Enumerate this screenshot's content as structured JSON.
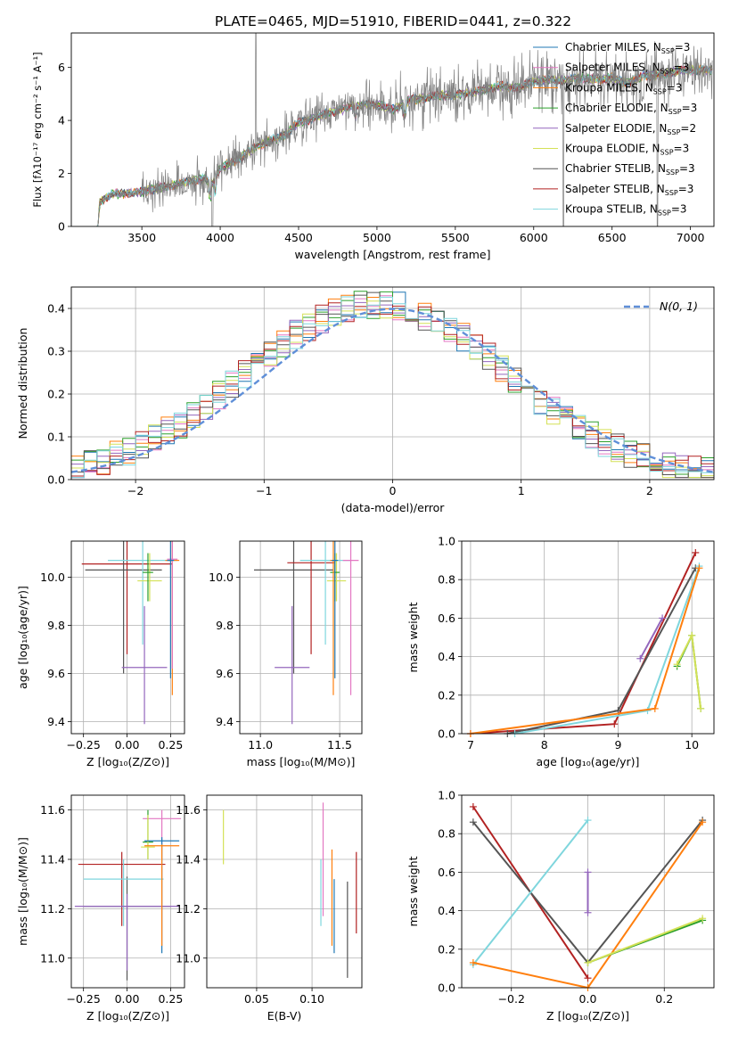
{
  "title": "PLATE=0465, MJD=51910, FIBERID=0441, z=0.322",
  "colors": {
    "chabrier_miles": "#1f77b4",
    "salpeter_miles": "#e377c2",
    "kroupa_miles": "#ff7f0e",
    "chabrier_elodie": "#2ca02c",
    "salpeter_elodie": "#9467bd",
    "kroupa_elodie": "#d4e157",
    "chabrier_stelib": "#555555",
    "salpeter_stelib": "#b22222",
    "kroupa_stelib": "#7fd6dd",
    "data": "#808080",
    "gaussian": "#5f8fd8",
    "grid": "#b0b0b0"
  },
  "chart_data": [
    {
      "id": "spectrum",
      "type": "line",
      "xlabel": "wavelength [Angstrom, rest frame]",
      "ylabel": "Flux [fλ10⁻¹⁷ erg cm⁻² s⁻¹ A⁻¹]",
      "xlim": [
        3050,
        7150
      ],
      "ylim": [
        0,
        7.3
      ],
      "xticks": [
        "3500",
        "4000",
        "4500",
        "5000",
        "5500",
        "6000",
        "6500",
        "7000"
      ],
      "yticks": [
        "0",
        "2",
        "4",
        "6"
      ],
      "grid": false,
      "legend": [
        "Chabrier MILES, N_SSP=3",
        "Salpeter MILES, N_SSP=3",
        "Kroupa MILES, N_SSP=3",
        "Chabrier ELODIE, N_SSP=3",
        "Salpeter ELODIE, N_SSP=2",
        "Kroupa ELODIE, N_SSP=3",
        "Chabrier STELIB, N_SSP=3",
        "Salpeter STELIB, N_SSP=3",
        "Kroupa STELIB, N_SSP=3"
      ],
      "legend_placement": "upper right",
      "continuum": {
        "x": [
          3220,
          3230,
          3300,
          3400,
          3500,
          3600,
          3700,
          3800,
          3900,
          3950,
          4000,
          4100,
          4200,
          4300,
          4400,
          4500,
          4600,
          4700,
          4800,
          4900,
          5000,
          5100,
          5200,
          5300,
          5400,
          5500,
          5600,
          5700,
          5800,
          5900,
          6000,
          6100,
          6200,
          6300,
          6400,
          6500,
          6600,
          6700,
          6800,
          6900,
          7000,
          7100
        ],
        "y": [
          0,
          0.9,
          1.2,
          1.25,
          1.3,
          1.45,
          1.55,
          1.7,
          1.8,
          1.6,
          2.2,
          2.5,
          2.9,
          3.2,
          3.4,
          3.9,
          4.1,
          4.3,
          4.45,
          4.6,
          4.6,
          4.4,
          4.75,
          4.85,
          4.95,
          4.95,
          5.05,
          5.2,
          5.3,
          5.2,
          5.45,
          5.55,
          5.5,
          5.6,
          5.55,
          5.6,
          5.4,
          5.7,
          5.7,
          5.85,
          5.9,
          5.9
        ]
      }
    },
    {
      "id": "residuals",
      "type": "line",
      "xlabel": "(data-model)/error",
      "ylabel": "Normed distribution",
      "xlim": [
        -2.5,
        2.5
      ],
      "ylim": [
        0,
        0.45
      ],
      "xticks": [
        "−2",
        "−1",
        "0",
        "1",
        "2"
      ],
      "yticks": [
        "0.0",
        "0.1",
        "0.2",
        "0.3",
        "0.4"
      ],
      "grid": true,
      "legend": [
        "N(0, 1)"
      ],
      "legend_placement": "upper right",
      "gaussian": {
        "mu": 0,
        "sigma": 1
      },
      "hist_bin_width": 0.1
    },
    {
      "id": "age_vs_Z",
      "type": "scatter",
      "xlabel": "Z [log₁₀(Z/Z⊙)]",
      "ylabel": "age  [log₁₀(age/yr)]",
      "xlim": [
        -0.32,
        0.33
      ],
      "ylim": [
        9.35,
        10.15
      ],
      "xticks": [
        "−0.25",
        "0.00",
        "0.25"
      ],
      "yticks": [
        "9.4",
        "9.6",
        "9.8",
        "10.0"
      ],
      "grid": true,
      "errorbars": [
        {
          "series": "salpeter_stelib",
          "x": 0.0,
          "xerr": 0.26,
          "y": 10.055,
          "ylo": 9.68,
          "yhi": 10.2
        },
        {
          "series": "chabrier_stelib",
          "x": -0.02,
          "xerr": 0.22,
          "y": 10.03,
          "ylo": 9.6,
          "yhi": 10.2
        },
        {
          "series": "salpeter_elodie",
          "x": 0.1,
          "xerr": 0.13,
          "y": 9.625,
          "ylo": 9.39,
          "yhi": 9.88
        },
        {
          "series": "kroupa_stelib",
          "x": 0.09,
          "xerr": 0.2,
          "y": 10.07,
          "ylo": 9.72,
          "yhi": 10.2
        },
        {
          "series": "kroupa_elodie",
          "x": 0.13,
          "xerr": 0.07,
          "y": 9.985,
          "ylo": 9.9,
          "yhi": 10.1
        },
        {
          "series": "chabrier_elodie",
          "x": 0.12,
          "xerr": 0.03,
          "y": 10.02,
          "ylo": 9.9,
          "yhi": 10.1
        },
        {
          "series": "kroupa_miles",
          "x": 0.26,
          "xerr": 0.04,
          "y": 10.07,
          "ylo": 9.51,
          "yhi": 10.2
        },
        {
          "series": "salpeter_miles",
          "x": 0.26,
          "xerr": 0.03,
          "y": 10.075,
          "ylo": 9.62,
          "yhi": 10.2
        },
        {
          "series": "chabrier_miles",
          "x": 0.25,
          "xerr": 0.02,
          "y": 10.07,
          "ylo": 9.58,
          "yhi": 10.2
        }
      ]
    },
    {
      "id": "age_vs_mass",
      "type": "scatter",
      "xlabel": "mass [log₁₀(M/M⊙)]",
      "ylabel": "",
      "xlim": [
        10.87,
        11.64
      ],
      "ylim": [
        9.35,
        10.15
      ],
      "xticks": [
        "11.0",
        "11.5"
      ],
      "yticks": [
        "9.4",
        "9.6",
        "9.8",
        "10.0"
      ],
      "grid": true,
      "errorbars": [
        {
          "series": "chabrier_stelib",
          "x": 11.21,
          "xerr": 0.25,
          "y": 10.03,
          "ylo": 9.6,
          "yhi": 10.2
        },
        {
          "series": "salpeter_stelib",
          "x": 11.32,
          "xerr": 0.15,
          "y": 10.06,
          "ylo": 9.68,
          "yhi": 10.2
        },
        {
          "series": "salpeter_elodie",
          "x": 11.2,
          "xerr": 0.11,
          "y": 9.625,
          "ylo": 9.39,
          "yhi": 9.88
        },
        {
          "series": "kroupa_stelib",
          "x": 11.41,
          "xerr": 0.16,
          "y": 10.07,
          "ylo": 9.72,
          "yhi": 10.2
        },
        {
          "series": "kroupa_elodie",
          "x": 11.48,
          "xerr": 0.06,
          "y": 9.985,
          "ylo": 9.9,
          "yhi": 10.1
        },
        {
          "series": "chabrier_elodie",
          "x": 11.47,
          "xerr": 0.03,
          "y": 10.02,
          "ylo": 9.9,
          "yhi": 10.1
        },
        {
          "series": "salpeter_miles",
          "x": 11.57,
          "xerr": 0.05,
          "y": 10.07,
          "ylo": 9.51,
          "yhi": 10.2
        },
        {
          "series": "kroupa_miles",
          "x": 11.46,
          "xerr": 0.02,
          "y": 10.07,
          "ylo": 9.51,
          "yhi": 10.2
        },
        {
          "series": "chabrier_miles",
          "x": 11.47,
          "xerr": 0.02,
          "y": 10.07,
          "ylo": 9.58,
          "yhi": 10.2
        }
      ]
    },
    {
      "id": "mass_weight_vs_age",
      "type": "line",
      "xlabel": "age  [log₁₀(age/yr)]",
      "ylabel": "mass weight",
      "xlim": [
        6.88,
        10.3
      ],
      "ylim": [
        0,
        1
      ],
      "xticks": [
        "7",
        "8",
        "9",
        "10"
      ],
      "yticks": [
        "0.0",
        "0.2",
        "0.4",
        "0.6",
        "0.8",
        "1.0"
      ],
      "grid": true,
      "series": [
        {
          "key": "salpeter_stelib",
          "x": [
            7.0,
            8.95,
            10.05
          ],
          "y": [
            0.0,
            0.05,
            0.94
          ]
        },
        {
          "key": "chabrier_stelib",
          "x": [
            7.5,
            9.0,
            10.05
          ],
          "y": [
            0.0,
            0.12,
            0.86
          ]
        },
        {
          "key": "salpeter_elodie",
          "x": [
            9.3,
            9.6
          ],
          "y": [
            0.39,
            0.6
          ]
        },
        {
          "key": "kroupa_stelib",
          "x": [
            7.6,
            9.4,
            10.1
          ],
          "y": [
            0.0,
            0.12,
            0.87
          ]
        },
        {
          "key": "kroupa_miles",
          "x": [
            7.0,
            9.5,
            10.1
          ],
          "y": [
            0.0,
            0.13,
            0.86
          ]
        },
        {
          "key": "chabrier_elodie",
          "x": [
            9.8,
            10.0,
            10.12
          ],
          "y": [
            0.35,
            0.51,
            0.13
          ]
        },
        {
          "key": "kroupa_elodie",
          "x": [
            9.8,
            10.0,
            10.12
          ],
          "y": [
            0.36,
            0.51,
            0.13
          ]
        }
      ]
    },
    {
      "id": "mass_vs_Z",
      "type": "scatter",
      "xlabel": "Z [log₁₀(Z/Z⊙)]",
      "ylabel": "mass [log₁₀(M/M⊙)]",
      "xlim": [
        -0.32,
        0.33
      ],
      "ylim": [
        10.88,
        11.66
      ],
      "xticks": [
        "−0.25",
        "0.00",
        "0.25"
      ],
      "yticks": [
        "11.0",
        "11.2",
        "11.4",
        "11.6"
      ],
      "grid": true,
      "errorbars": [
        {
          "series": "salpeter_stelib",
          "x": -0.03,
          "xerr": 0.25,
          "y": 11.38,
          "ylo": 11.13,
          "yhi": 11.43
        },
        {
          "series": "chabrier_stelib",
          "x": 0.0,
          "xerr": 0.25,
          "y": 11.21,
          "ylo": 10.91,
          "yhi": 11.33
        },
        {
          "series": "kroupa_stelib",
          "x": -0.02,
          "xerr": 0.23,
          "y": 11.32,
          "ylo": 11.13,
          "yhi": 11.4
        },
        {
          "series": "salpeter_elodie",
          "x": 0.0,
          "xerr": 0.3,
          "y": 11.21,
          "ylo": 10.95,
          "yhi": 11.26
        },
        {
          "series": "salpeter_miles",
          "x": 0.2,
          "xerr": 0.11,
          "y": 11.565,
          "ylo": 11.46,
          "yhi": 11.6
        },
        {
          "series": "chabrier_elodie",
          "x": 0.12,
          "xerr": 0.03,
          "y": 11.47,
          "ylo": 11.4,
          "yhi": 11.6
        },
        {
          "series": "kroupa_elodie",
          "x": 0.12,
          "xerr": 0.04,
          "y": 11.45,
          "ylo": 11.4,
          "yhi": 11.58
        },
        {
          "series": "chabrier_miles",
          "x": 0.2,
          "xerr": 0.1,
          "y": 11.475,
          "ylo": 11.02,
          "yhi": 11.49
        },
        {
          "series": "kroupa_miles",
          "x": 0.2,
          "xerr": 0.1,
          "y": 11.455,
          "ylo": 11.05,
          "yhi": 11.46
        }
      ]
    },
    {
      "id": "mass_vs_ebv",
      "type": "scatter",
      "xlabel": "E(B-V)",
      "ylabel": "",
      "xlim": [
        0.005,
        0.145
      ],
      "ylim": [
        10.88,
        11.66
      ],
      "xticks": [
        "0.05",
        "0.10"
      ],
      "yticks": [
        "11.0",
        "11.2",
        "11.4",
        "11.6"
      ],
      "grid": true,
      "errorbars": [
        {
          "series": "kroupa_elodie",
          "x": 0.02,
          "xerr": 0.0,
          "y": 11.45,
          "ylo": 11.38,
          "yhi": 11.6
        },
        {
          "series": "salpeter_miles",
          "x": 0.11,
          "xerr": 0.0,
          "y": 11.4,
          "ylo": 11.17,
          "yhi": 11.63
        },
        {
          "series": "kroupa_stelib",
          "x": 0.108,
          "xerr": 0.0,
          "y": 11.3,
          "ylo": 11.13,
          "yhi": 11.4
        },
        {
          "series": "kroupa_miles",
          "x": 0.118,
          "xerr": 0.0,
          "y": 11.3,
          "ylo": 11.05,
          "yhi": 11.44
        },
        {
          "series": "chabrier_miles",
          "x": 0.12,
          "xerr": 0.0,
          "y": 11.2,
          "ylo": 11.02,
          "yhi": 11.32
        },
        {
          "series": "chabrier_stelib",
          "x": 0.132,
          "xerr": 0.0,
          "y": 11.1,
          "ylo": 10.92,
          "yhi": 11.31
        },
        {
          "series": "salpeter_stelib",
          "x": 0.14,
          "xerr": 0.0,
          "y": 11.3,
          "ylo": 11.1,
          "yhi": 11.43
        }
      ]
    },
    {
      "id": "mass_weight_vs_Z",
      "type": "line",
      "xlabel": "Z [log₁₀(Z/Z⊙)]",
      "ylabel": "mass weight",
      "xlim": [
        -0.33,
        0.33
      ],
      "ylim": [
        0,
        1
      ],
      "xticks": [
        "−0.2",
        "0.0",
        "0.2"
      ],
      "yticks": [
        "0.0",
        "0.2",
        "0.4",
        "0.6",
        "0.8",
        "1.0"
      ],
      "grid": true,
      "series": [
        {
          "key": "salpeter_stelib",
          "x": [
            -0.3,
            0.0
          ],
          "y": [
            0.94,
            0.05
          ]
        },
        {
          "key": "chabrier_stelib",
          "x": [
            -0.3,
            0.0,
            0.3
          ],
          "y": [
            0.86,
            0.13,
            0.87
          ]
        },
        {
          "key": "kroupa_stelib",
          "x": [
            -0.3,
            0.0
          ],
          "y": [
            0.12,
            0.87
          ]
        },
        {
          "key": "kroupa_miles",
          "x": [
            -0.3,
            0.0,
            0.3
          ],
          "y": [
            0.13,
            0.0,
            0.86
          ]
        },
        {
          "key": "chabrier_elodie",
          "x": [
            0.0,
            0.3
          ],
          "y": [
            0.13,
            0.35
          ]
        },
        {
          "key": "kroupa_elodie",
          "x": [
            0.0,
            0.3
          ],
          "y": [
            0.13,
            0.36
          ]
        },
        {
          "key": "salpeter_elodie",
          "x": [
            0.0,
            0.0
          ],
          "y": [
            0.39,
            0.6
          ]
        }
      ]
    }
  ]
}
